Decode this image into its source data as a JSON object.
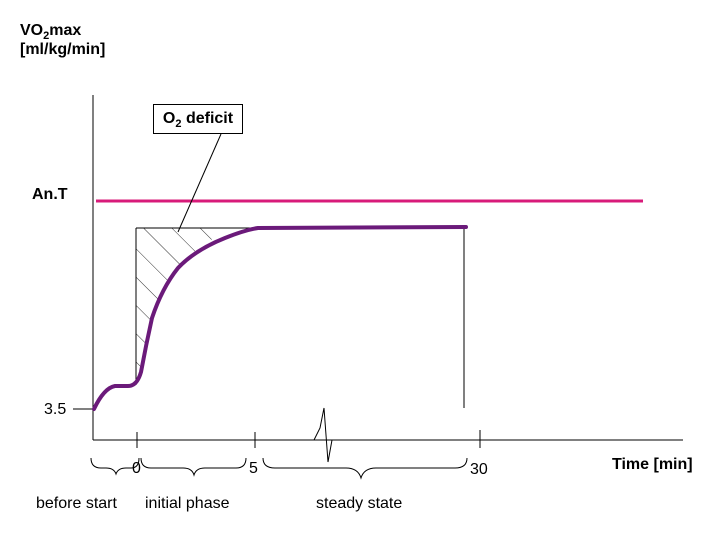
{
  "yaxis": {
    "label_line1_pre": "VO",
    "label_line1_sub": "2",
    "label_line1_post": "max",
    "label_line2": "[ml/kg/min]"
  },
  "anaerobic_threshold": {
    "label": "An.T",
    "color": "#d81b7a"
  },
  "deficit": {
    "pre": "O",
    "sub": "2",
    "post": " deficit"
  },
  "baseline": {
    "label": "3.5"
  },
  "ticks": [
    "0",
    "5",
    "30"
  ],
  "xaxis": {
    "label": "Time [min]"
  },
  "phases": [
    "before start",
    "initial phase",
    "steady state"
  ],
  "colors": {
    "curve": "#6b1a7a",
    "threshold": "#d81b7a"
  }
}
